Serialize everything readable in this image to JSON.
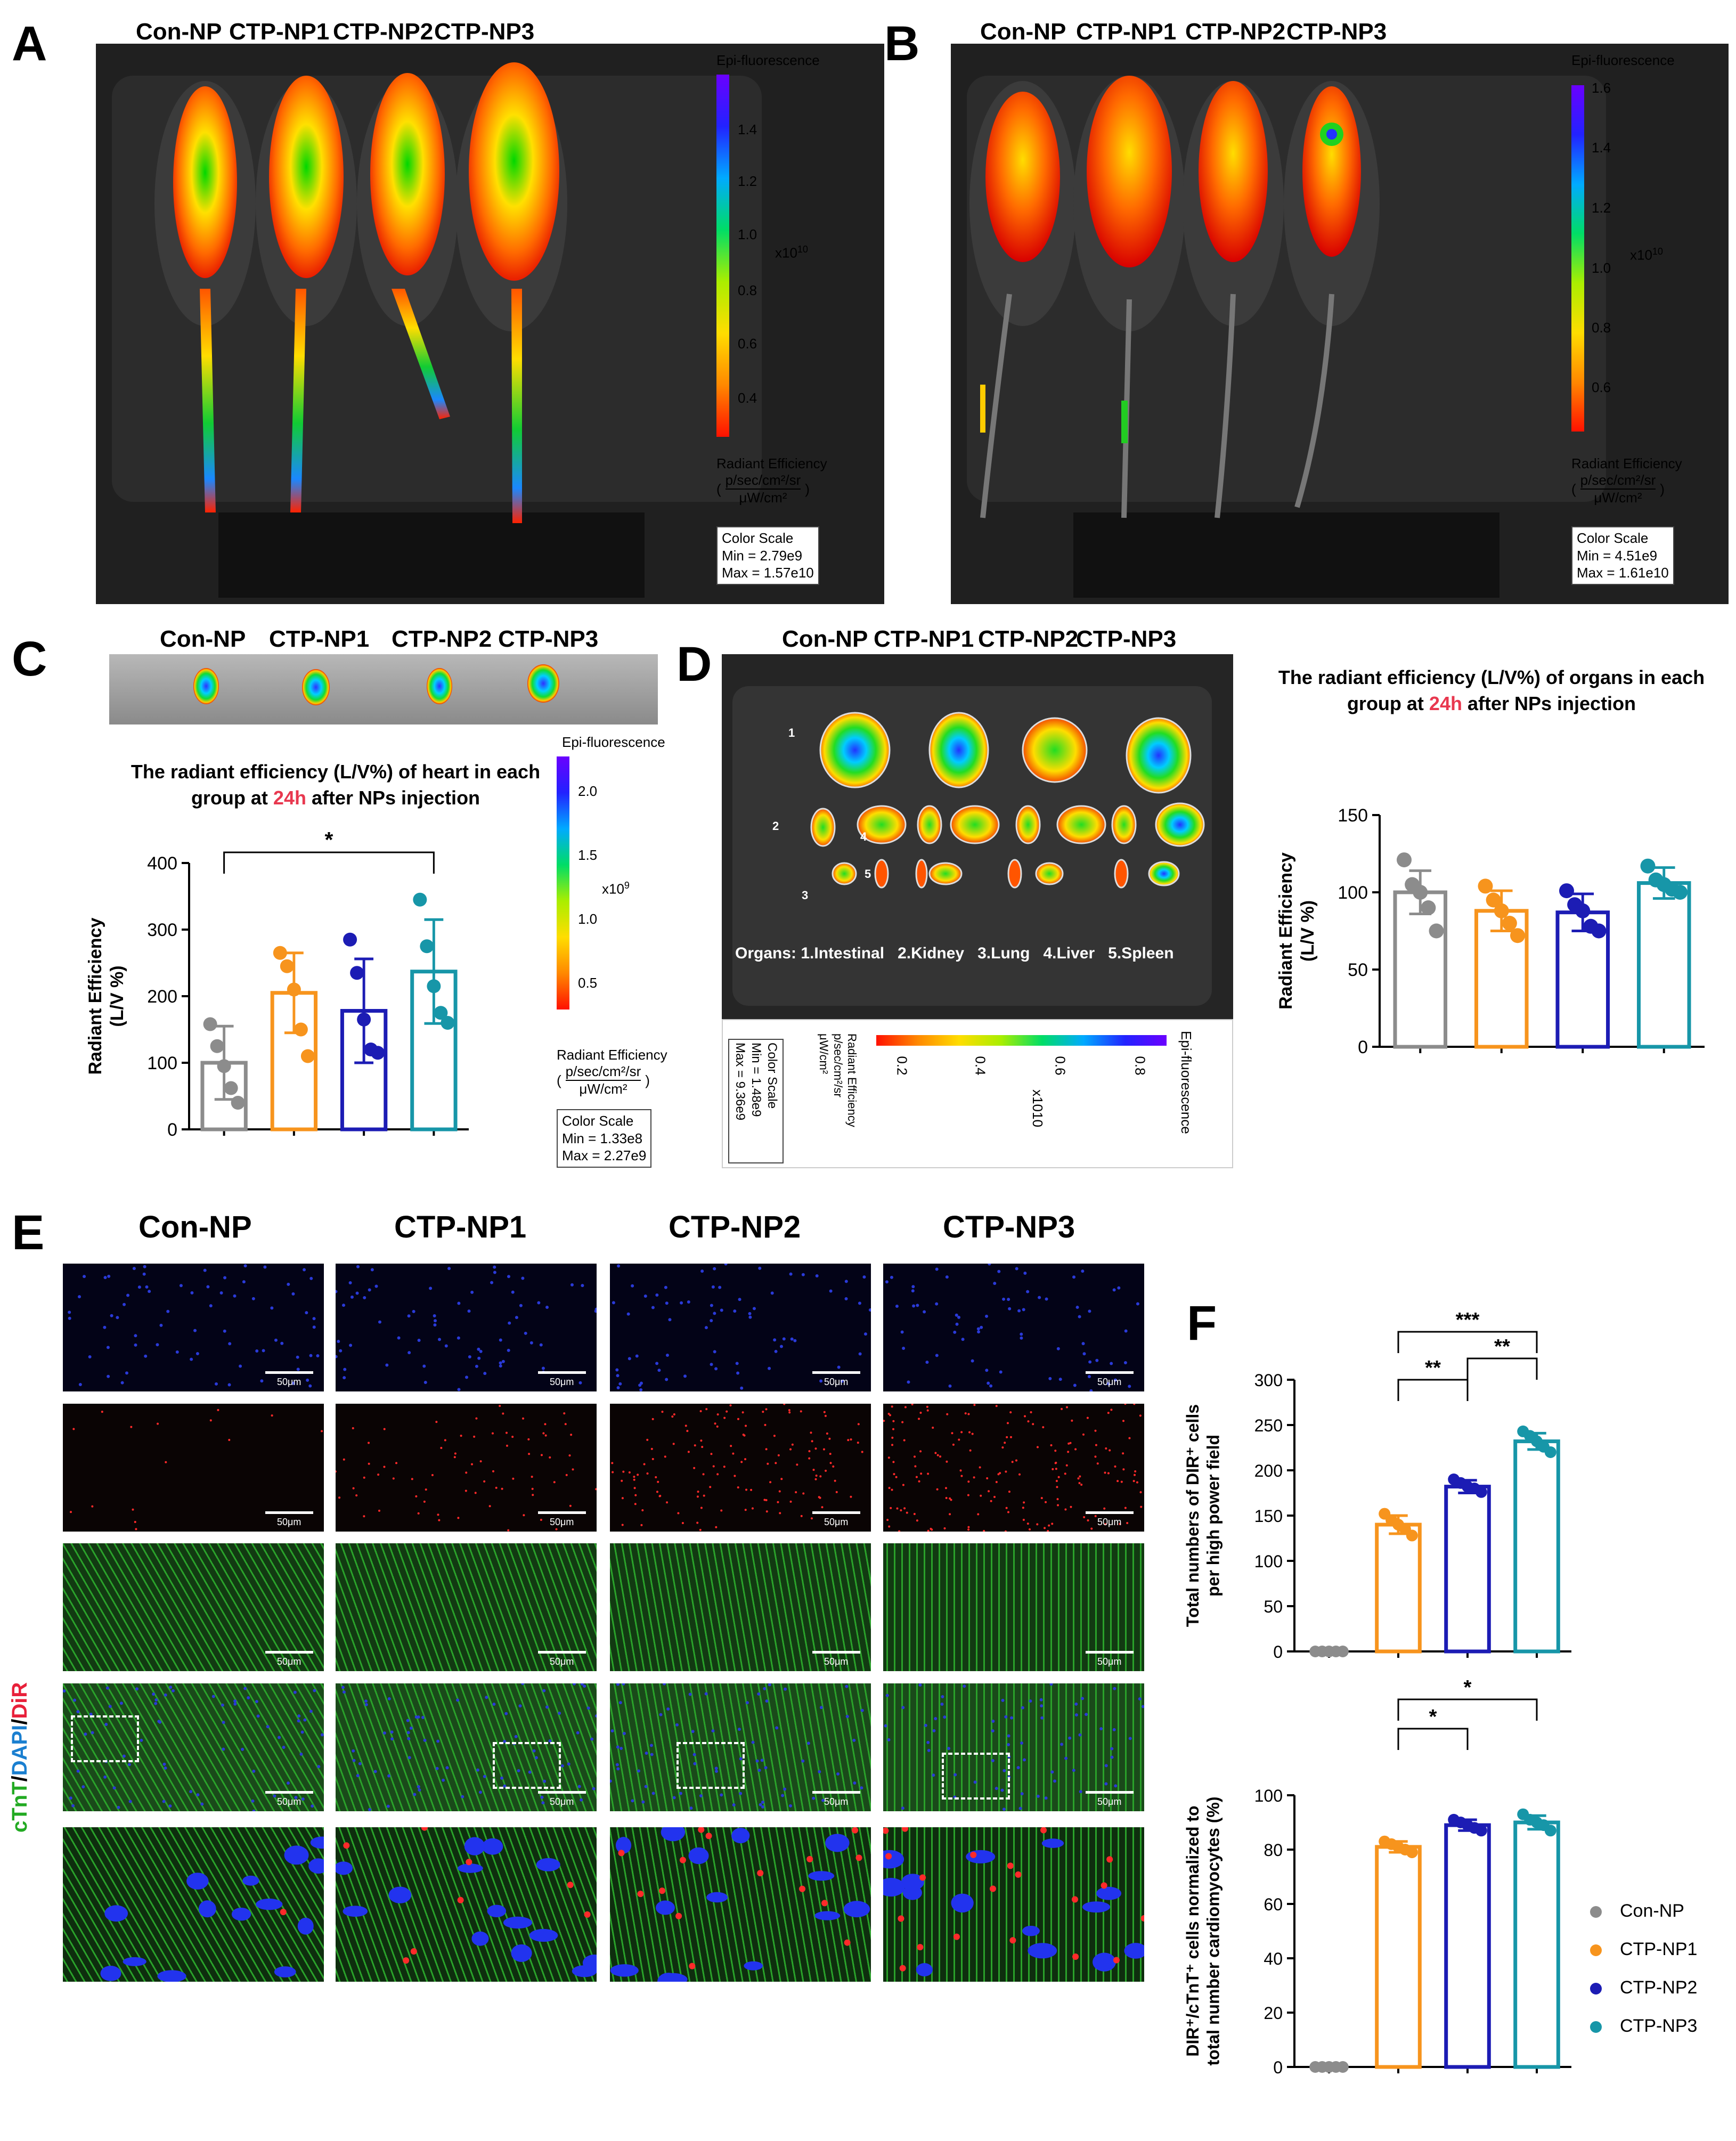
{
  "panels": {
    "A": "A",
    "B": "B",
    "C": "C",
    "D": "D",
    "E": "E",
    "F": "F"
  },
  "groups": [
    "Con-NP",
    "CTP-NP1",
    "CTP-NP2",
    "CTP-NP3"
  ],
  "colors": {
    "con": "#8c8c8c",
    "np1": "#f7941d",
    "np2": "#1c1cb4",
    "np3": "#1796a8"
  },
  "panelA": {
    "scale_title": "Epi-fluorescence",
    "ticks": [
      "1.4",
      "1.2",
      "1.0",
      "0.8",
      "0.6",
      "0.4"
    ],
    "multiplier": "x10",
    "exp": "10",
    "unit_title": "Radiant Efficiency",
    "unit_num": "p/sec/cm²/sr",
    "unit_den": "μW/cm²",
    "cs_title": "Color Scale",
    "cs_min": "Min = 2.79e9",
    "cs_max": "Max = 1.57e10"
  },
  "panelB": {
    "scale_title": "Epi-fluorescence",
    "ticks": [
      "1.6",
      "1.4",
      "1.2",
      "1.0",
      "0.8",
      "0.6"
    ],
    "multiplier": "x10",
    "exp": "10",
    "unit_title": "Radiant Efficiency",
    "unit_num": "p/sec/cm²/sr",
    "unit_den": "μW/cm²",
    "cs_title": "Color Scale",
    "cs_min": "Min = 4.51e9",
    "cs_max": "Max = 1.61e10"
  },
  "panelC": {
    "title_pre": "The radiant efficiency (L/V%) of heart in each group at ",
    "title_hl": "24h",
    "title_post": " after NPs injection",
    "scale_title": "Epi-fluorescence",
    "ticks": [
      "2.0",
      "1.5",
      "1.0",
      "0.5"
    ],
    "multiplier": "x10",
    "exp": "9",
    "unit_title": "Radiant Efficiency",
    "unit_num": "p/sec/cm²/sr",
    "unit_den": "μW/cm²",
    "cs_title": "Color Scale",
    "cs_min": "Min = 1.33e8",
    "cs_max": "Max = 2.27e9"
  },
  "panelD": {
    "organs_label": "Organs: 1.Intestinal   2.Kidney   3.Lung   4.Liver   5.Spleen",
    "title_pre": "The radiant efficiency (L/V%) of organs in each group at ",
    "title_hl": "24h",
    "title_post": " after NPs injection",
    "scale_title": "Epi-fluorescence",
    "ticks": [
      "0.2",
      "0.4",
      "0.6",
      "0.8"
    ],
    "multiplier": "x10",
    "exp": "10",
    "unit_title": "Radiant Efficiency",
    "unit_num": "p/sec/cm²/sr",
    "unit_den": "μW/cm²",
    "cs_title": "Color Scale",
    "cs_min": "Min = 1.48e9",
    "cs_max": "Max = 9.36e9",
    "organ_numbers": [
      "1",
      "2",
      "3",
      "4",
      "5"
    ]
  },
  "panelE": {
    "side_label_ctnt": "cTnT",
    "side_label_dapi": "DAPI",
    "side_label_dir": "DiR",
    "scale_bar": "50μm"
  },
  "legend": [
    "Con-NP",
    "CTP-NP1",
    "CTP-NP2",
    "CTP-NP3"
  ],
  "chart_data": [
    {
      "id": "C",
      "type": "bar",
      "categories": [
        "Con-NP",
        "CTP-NP1",
        "CTP-NP2",
        "CTP-NP3"
      ],
      "values": [
        100,
        205,
        178,
        237
      ],
      "errors": [
        55,
        60,
        78,
        78
      ],
      "points": [
        [
          158,
          125,
          95,
          62,
          40
        ],
        [
          265,
          245,
          210,
          150,
          110
        ],
        [
          285,
          235,
          165,
          120,
          115
        ],
        [
          345,
          275,
          215,
          175,
          160
        ]
      ],
      "ylabel": "Radiant Efficiency\n(L/V %)",
      "ylim": [
        0,
        400
      ],
      "yticks": [
        0,
        100,
        200,
        300,
        400
      ],
      "significance": [
        {
          "from": 0,
          "to": 3,
          "label": "*"
        }
      ]
    },
    {
      "id": "D",
      "type": "bar",
      "categories": [
        "Con-NP",
        "CTP-NP1",
        "CTP-NP2",
        "CTP-NP3"
      ],
      "values": [
        100,
        88,
        87,
        106
      ],
      "errors": [
        14,
        13,
        12,
        10
      ],
      "points": [
        [
          121,
          105,
          100,
          90,
          75
        ],
        [
          104,
          95,
          88,
          80,
          72
        ],
        [
          101,
          92,
          88,
          78,
          75
        ],
        [
          117,
          108,
          105,
          102,
          100
        ]
      ],
      "ylabel": "Radiant Efficiency\n(L/V %)",
      "ylim": [
        0,
        150
      ],
      "yticks": [
        0,
        50,
        100,
        150
      ],
      "significance": []
    },
    {
      "id": "F1",
      "type": "bar",
      "categories": [
        "Con-NP",
        "CTP-NP1",
        "CTP-NP2",
        "CTP-NP3"
      ],
      "values": [
        0,
        140,
        182,
        232
      ],
      "errors": [
        0,
        10,
        7,
        9
      ],
      "points": [
        [
          0,
          0,
          0,
          0,
          0
        ],
        [
          152,
          145,
          140,
          135,
          128
        ],
        [
          190,
          186,
          182,
          180,
          176
        ],
        [
          243,
          238,
          232,
          226,
          220
        ]
      ],
      "ylabel": "Total numbers of DIR⁺ cells\nper high power field",
      "ylim": [
        0,
        300
      ],
      "yticks": [
        0,
        50,
        100,
        150,
        200,
        250,
        300
      ],
      "significance": [
        {
          "from": 1,
          "to": 2,
          "label": "**"
        },
        {
          "from": 2,
          "to": 3,
          "label": "**"
        },
        {
          "from": 1,
          "to": 3,
          "label": "***"
        }
      ]
    },
    {
      "id": "F2",
      "type": "bar",
      "categories": [
        "Con-NP",
        "CTP-NP1",
        "CTP-NP2",
        "CTP-NP3"
      ],
      "values": [
        0,
        81,
        89,
        90
      ],
      "errors": [
        0,
        2,
        2,
        2.5
      ],
      "points": [
        [
          0,
          0,
          0,
          0,
          0
        ],
        [
          83,
          82,
          81,
          80,
          79
        ],
        [
          91,
          90,
          89,
          88,
          87
        ],
        [
          93,
          91,
          90,
          89,
          87
        ]
      ],
      "ylabel": "DIR⁺/cTnT⁺ cells normalized to\ntotal number cardiomyocytes (%)",
      "ylim": [
        0,
        100
      ],
      "yticks": [
        0,
        20,
        40,
        60,
        80,
        100
      ],
      "significance": [
        {
          "from": 1,
          "to": 2,
          "label": "*"
        },
        {
          "from": 1,
          "to": 3,
          "label": "*"
        }
      ]
    }
  ]
}
